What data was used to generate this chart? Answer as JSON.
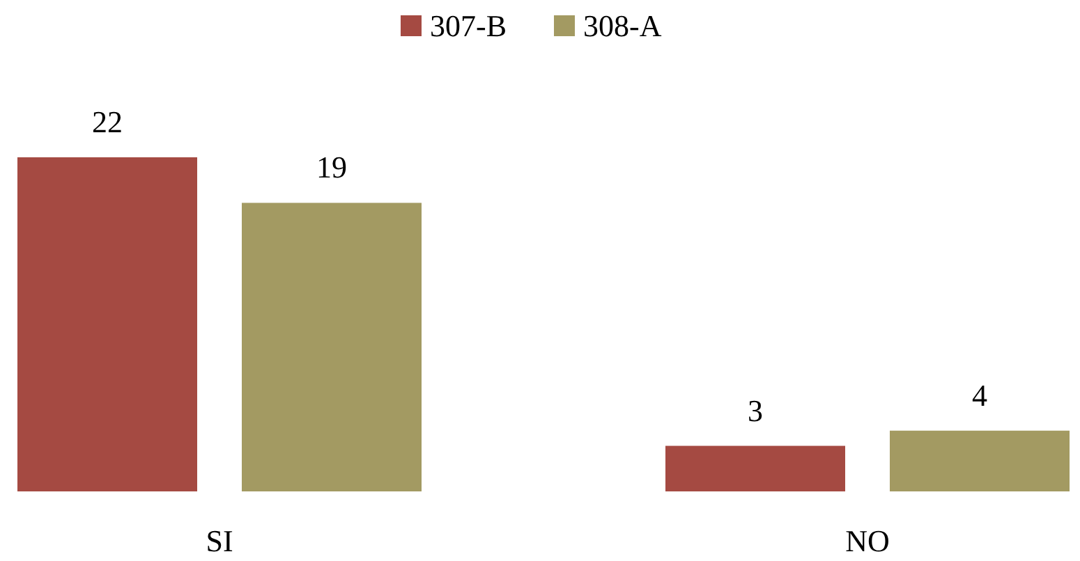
{
  "chart_data": {
    "type": "bar",
    "categories": [
      "SI",
      "NO"
    ],
    "series": [
      {
        "name": "307-B",
        "color": "#a54a42",
        "values": [
          22,
          3
        ]
      },
      {
        "name": "308-A",
        "color": "#a39a62",
        "values": [
          19,
          4
        ]
      }
    ],
    "data_labels": true,
    "legend": "top"
  }
}
